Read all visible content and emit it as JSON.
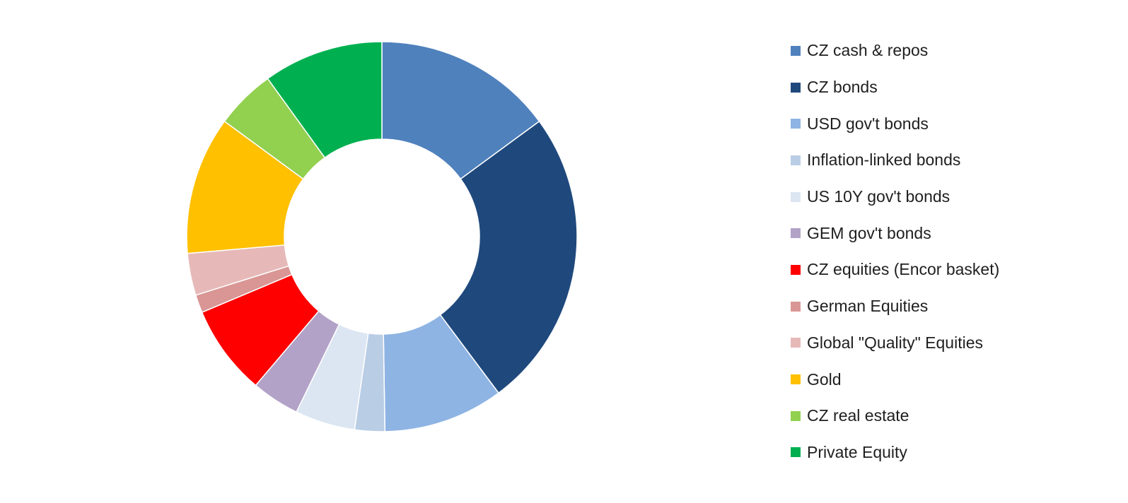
{
  "chart_data": {
    "type": "pie",
    "variant": "donut",
    "title": "",
    "legend_position": "right",
    "slices": [
      {
        "label": "CZ cash & repos",
        "value": 15,
        "color": "#4F81BD"
      },
      {
        "label": "CZ bonds",
        "value": 25,
        "color": "#1F497D"
      },
      {
        "label": "USD gov't bonds",
        "value": 10,
        "color": "#8EB4E3"
      },
      {
        "label": "Inflation-linked bonds",
        "value": 2.5,
        "color": "#B9CDE5"
      },
      {
        "label": "US 10Y gov't bonds",
        "value": 5,
        "color": "#DCE6F2"
      },
      {
        "label": "GEM gov't bonds",
        "value": 4,
        "color": "#B3A2C7"
      },
      {
        "label": "CZ equities (Encor basket)",
        "value": 7.5,
        "color": "#FF0000"
      },
      {
        "label": "German Equities",
        "value": 1.5,
        "color": "#D99694"
      },
      {
        "label": "Global \"Quality\" Equities",
        "value": 3.5,
        "color": "#E6B9B8"
      },
      {
        "label": "Gold",
        "value": 11.5,
        "color": "#FFC000"
      },
      {
        "label": "CZ real estate",
        "value": 5,
        "color": "#92D050"
      },
      {
        "label": "Private Equity",
        "value": 10,
        "color": "#00B050"
      }
    ]
  }
}
